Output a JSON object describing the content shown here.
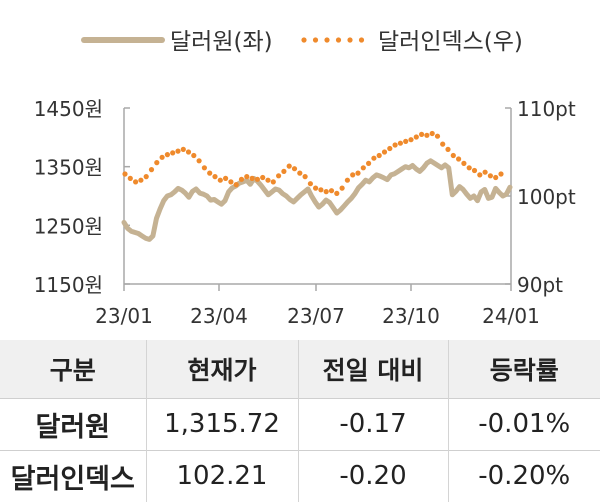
{
  "chart_data": {
    "type": "line",
    "x_ticks": [
      "23/01",
      "23/04",
      "23/07",
      "23/10",
      "24/01"
    ],
    "y_left": {
      "ticks": [
        "1450원",
        "1350원",
        "1250원",
        "1150원"
      ],
      "range": [
        1150,
        1450
      ]
    },
    "y_right": {
      "ticks": [
        "110pt",
        "100pt",
        "90pt"
      ],
      "range": [
        90,
        110
      ]
    },
    "legend_position": "top",
    "series": [
      {
        "name": "달러원(좌)",
        "axis": "left",
        "color": "#c5b293",
        "style": "solid",
        "values": [
          1255,
          1245,
          1240,
          1238,
          1236,
          1232,
          1228,
          1226,
          1232,
          1262,
          1278,
          1292,
          1300,
          1302,
          1307,
          1313,
          1310,
          1305,
          1298,
          1308,
          1312,
          1305,
          1303,
          1300,
          1293,
          1294,
          1290,
          1286,
          1292,
          1307,
          1314,
          1317,
          1322,
          1324,
          1327,
          1320,
          1330,
          1325,
          1318,
          1310,
          1302,
          1307,
          1312,
          1310,
          1304,
          1300,
          1294,
          1290,
          1296,
          1302,
          1307,
          1312,
          1300,
          1290,
          1281,
          1286,
          1293,
          1289,
          1280,
          1271,
          1276,
          1283,
          1290,
          1296,
          1304,
          1314,
          1320,
          1327,
          1324,
          1331,
          1336,
          1334,
          1331,
          1328,
          1336,
          1338,
          1342,
          1346,
          1350,
          1348,
          1352,
          1346,
          1342,
          1348,
          1356,
          1360,
          1356,
          1352,
          1348,
          1353,
          1348,
          1302,
          1308,
          1316,
          1311,
          1303,
          1296,
          1300,
          1292,
          1307,
          1311,
          1296,
          1298,
          1313,
          1306,
          1300,
          1303,
          1315
        ]
      },
      {
        "name": "달러인덱스(우)",
        "axis": "right",
        "color": "#ef8a2c",
        "style": "dotted",
        "values": [
          102.5,
          102.0,
          101.6,
          101.8,
          102.2,
          103.0,
          103.8,
          104.4,
          104.7,
          104.9,
          105.1,
          105.3,
          105.0,
          104.6,
          104.0,
          103.2,
          102.6,
          102.2,
          101.8,
          102.0,
          101.6,
          101.3,
          101.9,
          102.2,
          102.0,
          101.9,
          102.1,
          101.8,
          101.6,
          102.3,
          102.8,
          103.4,
          103.1,
          102.6,
          102.2,
          101.4,
          100.9,
          100.7,
          100.5,
          100.6,
          100.3,
          100.9,
          101.8,
          102.4,
          102.6,
          103.2,
          103.7,
          104.3,
          104.6,
          105.0,
          105.4,
          105.8,
          106.0,
          106.2,
          106.4,
          106.7,
          107.0,
          106.9,
          107.1,
          106.8,
          105.9,
          105.3,
          104.6,
          104.2,
          103.7,
          103.2,
          102.9,
          102.4,
          102.7,
          102.3,
          102.1,
          102.5
        ]
      }
    ]
  },
  "table": {
    "headers": [
      "구분",
      "현재가",
      "전일 대비",
      "등락률"
    ],
    "rows": [
      [
        "달러원",
        "1,315.72",
        "-0.17",
        "-0.01%"
      ],
      [
        "달러인덱스",
        "102.21",
        "-0.20",
        "-0.20%"
      ]
    ]
  }
}
